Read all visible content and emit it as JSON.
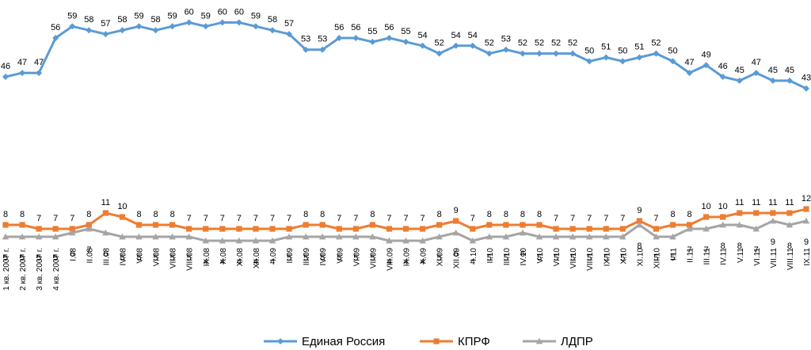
{
  "chart_data": {
    "type": "line",
    "title": "",
    "xlabel": "",
    "ylabel": "",
    "ylim": [
      0,
      62
    ],
    "grid": false,
    "legend_position": "bottom",
    "categories": [
      "1 кв. 2007 г.",
      "2 кв. 2007 г.",
      "3 кв. 2007 г.",
      "4 кв. 2007 г.",
      "I.08",
      "II.08",
      "III.08",
      "IV.08",
      "V.08",
      "VI.08",
      "VII.08",
      "VIII.08",
      "IX.08",
      "X.08",
      "XI.08",
      "XII.08",
      "I.09",
      "II.09",
      "III.09",
      "IV.09",
      "V.09",
      "VI.09",
      "VII.09",
      "VIII.09",
      "IX.09",
      "X.09",
      "XI.09",
      "XII.09",
      "I.10",
      "II.10",
      "III.10",
      "IV.10",
      "V.10",
      "VI.10",
      "VII.10",
      "VIII.10",
      "IX.10",
      "X.10",
      "XI.10",
      "XII.10",
      "I.11",
      "II.11",
      "III.11",
      "IV.11",
      "V.11",
      "VI.11",
      "VII.11",
      "VIII.11",
      "IX.11"
    ],
    "series": [
      {
        "name": "Единая Россия",
        "color": "#5B9BD5",
        "marker": "diamond",
        "label_pos": "above",
        "values": [
          46,
          47,
          47,
          56,
          59,
          58,
          57,
          58,
          59,
          58,
          59,
          60,
          59,
          60,
          60,
          59,
          58,
          57,
          53,
          53,
          56,
          56,
          55,
          56,
          55,
          54,
          52,
          54,
          54,
          52,
          53,
          52,
          52,
          52,
          52,
          50,
          51,
          50,
          51,
          52,
          50,
          47,
          49,
          46,
          45,
          47,
          45,
          45,
          43
        ]
      },
      {
        "name": "КПРФ",
        "color": "#ED7D31",
        "marker": "square",
        "label_pos": "above",
        "values": [
          8,
          8,
          7,
          7,
          7,
          8,
          11,
          10,
          8,
          8,
          8,
          7,
          7,
          7,
          7,
          7,
          7,
          7,
          8,
          8,
          7,
          7,
          8,
          7,
          7,
          7,
          8,
          9,
          7,
          8,
          8,
          8,
          8,
          7,
          7,
          7,
          7,
          7,
          9,
          7,
          8,
          8,
          10,
          10,
          11,
          11,
          11,
          11,
          12
        ]
      },
      {
        "name": "ЛДПР",
        "color": "#A5A5A5",
        "marker": "triangle",
        "label_pos": "below",
        "values": [
          5,
          5,
          5,
          5,
          6,
          7,
          6,
          5,
          5,
          5,
          5,
          5,
          4,
          4,
          4,
          4,
          4,
          5,
          5,
          5,
          5,
          5,
          5,
          4,
          4,
          4,
          5,
          6,
          4,
          5,
          5,
          6,
          5,
          5,
          5,
          5,
          5,
          5,
          8,
          5,
          5,
          7,
          7,
          8,
          8,
          7,
          9,
          8,
          9
        ]
      }
    ]
  }
}
